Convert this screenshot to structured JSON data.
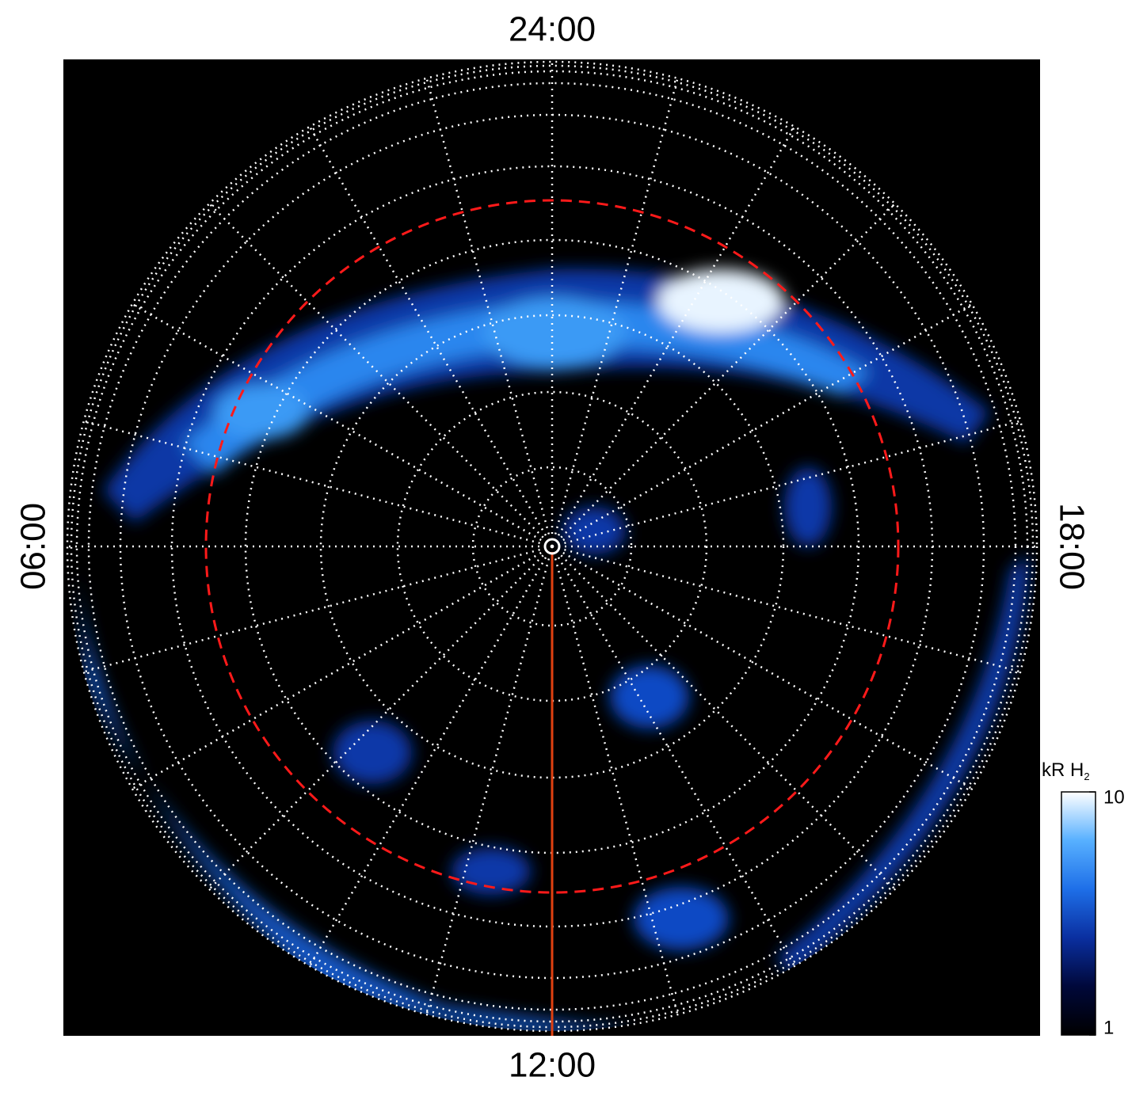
{
  "chart_data": {
    "type": "polar-image",
    "angular_labels": {
      "top": "24:00",
      "left": "06:00",
      "bottom": "12:00",
      "right": "18:00"
    },
    "colorbar": {
      "label": "kR H",
      "label_sub": "2",
      "lim": [
        1,
        10
      ],
      "ticks": [
        1,
        10
      ],
      "log": true,
      "colors": [
        "#000000",
        "#00083a",
        "#0a2fa0",
        "#1e6fe8",
        "#57b0ff",
        "#ffffff"
      ]
    },
    "grid": true
  }
}
